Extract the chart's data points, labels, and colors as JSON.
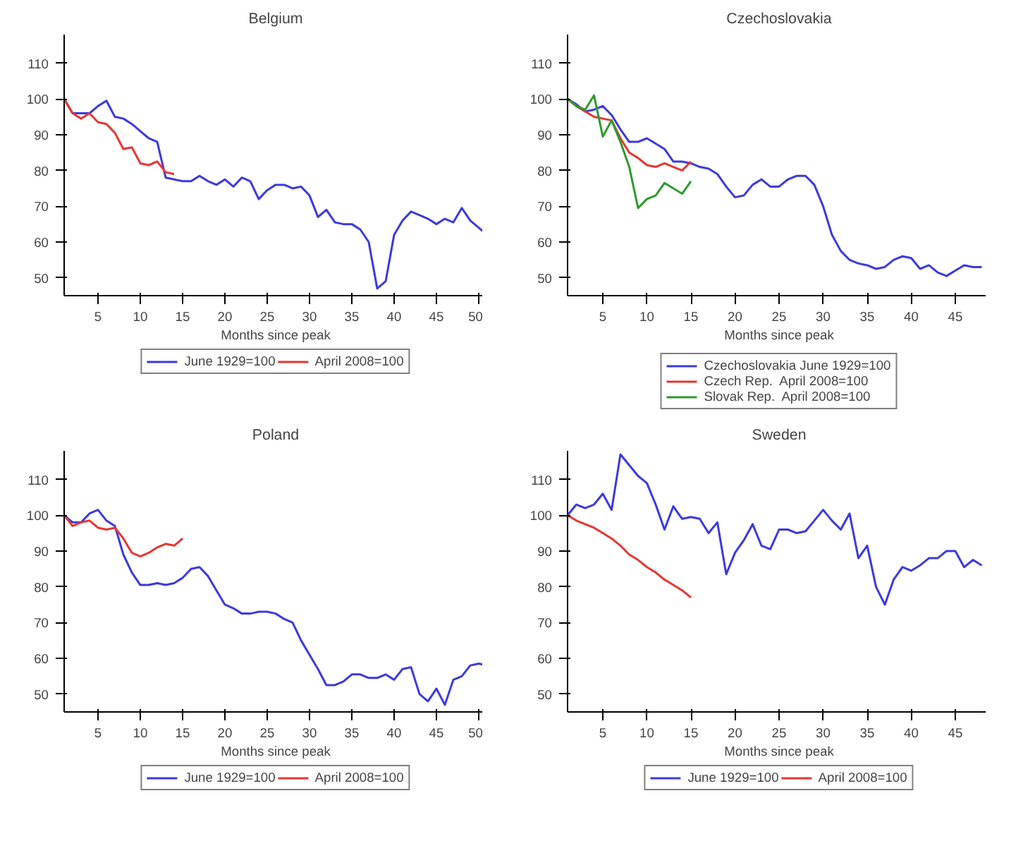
{
  "chart_data": [
    {
      "type": "line",
      "title": "Belgium",
      "xlabel": "Months since peak",
      "xlim": [
        1,
        51
      ],
      "xticks": [
        5,
        10,
        15,
        20,
        25,
        30,
        35,
        40,
        45,
        50
      ],
      "ylim": [
        45,
        118
      ],
      "yticks": [
        50,
        60,
        70,
        80,
        90,
        100,
        110
      ],
      "grid": false,
      "legend": "bottom",
      "line_style": "solid",
      "series": [
        {
          "name": "June 1929=100",
          "color": "#3a3adf",
          "x": [
            1,
            2,
            3,
            4,
            5,
            6,
            7,
            8,
            9,
            10,
            11,
            12,
            13,
            14,
            15,
            16,
            17,
            18,
            19,
            20,
            21,
            22,
            23,
            24,
            25,
            26,
            27,
            28,
            29,
            30,
            31,
            32,
            33,
            34,
            35,
            36,
            37,
            38,
            39,
            40,
            41,
            42,
            43,
            44,
            45,
            46,
            47,
            48,
            49,
            50,
            51
          ],
          "values": [
            100,
            96,
            96,
            96,
            98,
            99.5,
            95,
            94.5,
            93,
            91,
            89,
            88,
            78,
            77.5,
            77,
            77,
            78.5,
            77,
            76,
            77.5,
            75.5,
            78,
            77,
            72,
            74.5,
            76,
            76,
            75,
            75.5,
            73,
            67,
            69,
            65.5,
            65,
            65,
            63.5,
            60,
            47,
            49,
            62,
            66,
            68.5,
            67.5,
            66.5,
            65,
            66.5,
            65.5,
            69.5,
            66,
            64,
            62
          ]
        },
        {
          "name": "April 2008=100",
          "color": "#e8352f",
          "x": [
            1,
            2,
            3,
            4,
            5,
            6,
            7,
            8,
            9,
            10,
            11,
            12,
            13,
            14
          ],
          "values": [
            100,
            96,
            94.5,
            96,
            93.5,
            93,
            90.5,
            86,
            86.5,
            82,
            81.5,
            82.5,
            79.5,
            79
          ]
        }
      ]
    },
    {
      "type": "line",
      "title": "Czechoslovakia",
      "xlabel": "Months since peak",
      "xlim": [
        1,
        49
      ],
      "xticks": [
        5,
        10,
        15,
        20,
        25,
        30,
        35,
        40,
        45
      ],
      "ylim": [
        45,
        118
      ],
      "yticks": [
        50,
        60,
        70,
        80,
        90,
        100,
        110
      ],
      "grid": false,
      "legend": "bottom",
      "line_style": "solid",
      "series": [
        {
          "name": "Czechoslovakia June 1929=100",
          "color": "#3a3adf",
          "x": [
            1,
            2,
            3,
            4,
            5,
            6,
            7,
            8,
            9,
            10,
            11,
            12,
            13,
            14,
            15,
            16,
            17,
            18,
            19,
            20,
            21,
            22,
            23,
            24,
            25,
            26,
            27,
            28,
            29,
            30,
            31,
            32,
            33,
            34,
            35,
            36,
            37,
            38,
            39,
            40,
            41,
            42,
            43,
            44,
            45,
            46,
            47,
            48
          ],
          "values": [
            100,
            98.5,
            96.5,
            97,
            98,
            95.5,
            91.5,
            88,
            88,
            89,
            87.5,
            86,
            82.5,
            82.5,
            82,
            81,
            80.5,
            79,
            75.5,
            72.5,
            73,
            76,
            77.5,
            75.5,
            75.5,
            77.5,
            78.5,
            78.5,
            76,
            70,
            62,
            57.5,
            55,
            54,
            53.5,
            52.5,
            53,
            55,
            56,
            55.5,
            52.5,
            53.5,
            51.5,
            50.5,
            52,
            53.5,
            53,
            53
          ]
        },
        {
          "name": "Czech Rep.  April 2008=100",
          "color": "#e8352f",
          "x": [
            1,
            2,
            3,
            4,
            5,
            6,
            7,
            8,
            9,
            10,
            11,
            12,
            13,
            14,
            15
          ],
          "values": [
            100,
            98,
            96.5,
            95,
            94.5,
            94,
            89,
            85,
            83.5,
            81.5,
            81,
            82,
            81,
            80,
            82.5
          ]
        },
        {
          "name": "Slovak Rep.  April 2008=100",
          "color": "#2e9a2e",
          "x": [
            1,
            2,
            3,
            4,
            5,
            6,
            7,
            8,
            9,
            10,
            11,
            12,
            13,
            14,
            15
          ],
          "values": [
            100,
            98,
            97,
            101,
            89.5,
            94,
            88,
            81,
            69.5,
            72,
            73,
            76.5,
            75,
            73.5,
            77
          ]
        }
      ]
    },
    {
      "type": "line",
      "title": "Poland",
      "xlabel": "Months since peak",
      "xlim": [
        1,
        51
      ],
      "xticks": [
        5,
        10,
        15,
        20,
        25,
        30,
        35,
        40,
        45,
        50
      ],
      "ylim": [
        45,
        118
      ],
      "yticks": [
        50,
        60,
        70,
        80,
        90,
        100,
        110
      ],
      "grid": false,
      "legend": "bottom",
      "line_style": "solid",
      "series": [
        {
          "name": "June 1929=100",
          "color": "#3a3adf",
          "x": [
            1,
            2,
            3,
            4,
            5,
            6,
            7,
            8,
            9,
            10,
            11,
            12,
            13,
            14,
            15,
            16,
            17,
            18,
            19,
            20,
            21,
            22,
            23,
            24,
            25,
            26,
            27,
            28,
            29,
            30,
            31,
            32,
            33,
            34,
            35,
            36,
            37,
            38,
            39,
            40,
            41,
            42,
            43,
            44,
            45,
            46,
            47,
            48,
            49,
            50,
            51
          ],
          "values": [
            100,
            98,
            98,
            100.5,
            101.5,
            98.5,
            97,
            89,
            84,
            80.5,
            80.5,
            81,
            80.5,
            81,
            82.5,
            85,
            85.5,
            83,
            79,
            75,
            74,
            72.5,
            72.5,
            73,
            73,
            72.5,
            71,
            70,
            65,
            61,
            57,
            52.5,
            52.5,
            53.5,
            55.5,
            55.5,
            54.5,
            54.5,
            55.5,
            54,
            57,
            57.5,
            50,
            48,
            51.5,
            47,
            54,
            55,
            58,
            58.5,
            58
          ]
        },
        {
          "name": "April 2008=100",
          "color": "#e8352f",
          "x": [
            1,
            2,
            3,
            4,
            5,
            6,
            7,
            8,
            9,
            10,
            11,
            12,
            13,
            14,
            15
          ],
          "values": [
            100,
            97,
            98,
            98.5,
            96.5,
            96,
            96.5,
            93.5,
            89.5,
            88.5,
            89.5,
            91,
            92,
            91.5,
            93.5
          ]
        }
      ]
    },
    {
      "type": "line",
      "title": "Sweden",
      "xlabel": "Months since peak",
      "xlim": [
        1,
        49
      ],
      "xticks": [
        5,
        10,
        15,
        20,
        25,
        30,
        35,
        40,
        45
      ],
      "ylim": [
        45,
        118
      ],
      "yticks": [
        50,
        60,
        70,
        80,
        90,
        100,
        110
      ],
      "grid": false,
      "legend": "bottom",
      "line_style": "solid",
      "series": [
        {
          "name": "June 1929=100",
          "color": "#3a3adf",
          "x": [
            1,
            2,
            3,
            4,
            5,
            6,
            7,
            8,
            9,
            10,
            11,
            12,
            13,
            14,
            15,
            16,
            17,
            18,
            19,
            20,
            21,
            22,
            23,
            24,
            25,
            26,
            27,
            28,
            29,
            30,
            31,
            32,
            33,
            34,
            35,
            36,
            37,
            38,
            39,
            40,
            41,
            42,
            43,
            44,
            45,
            46,
            47,
            48
          ],
          "values": [
            100,
            103,
            102,
            103,
            106,
            101.5,
            117,
            114,
            111,
            109,
            103,
            96,
            102.5,
            99,
            99.5,
            99,
            95,
            98,
            83.5,
            89.5,
            93,
            97.5,
            91.5,
            90.5,
            96,
            96,
            95,
            95.5,
            98.5,
            101.5,
            98.5,
            96,
            100.5,
            88,
            91.5,
            80,
            75,
            82,
            85.5,
            84.5,
            86,
            88,
            88,
            90,
            90,
            85.5,
            87.5,
            86
          ]
        },
        {
          "name": "April 2008=100",
          "color": "#e8352f",
          "x": [
            1,
            2,
            3,
            4,
            5,
            6,
            7,
            8,
            9,
            10,
            11,
            12,
            13,
            14,
            15
          ],
          "values": [
            100,
            98.5,
            97.5,
            96.5,
            95,
            93.5,
            91.5,
            89,
            87.5,
            85.5,
            84,
            82,
            80.5,
            79,
            77
          ]
        }
      ]
    }
  ]
}
